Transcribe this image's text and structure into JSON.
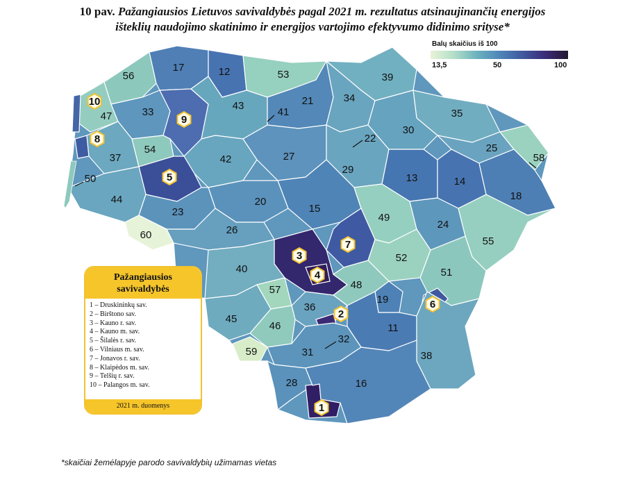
{
  "title": {
    "number": "10 pav.",
    "line1": "Pažangiausios Lietuvos savivaldybės pagal 2021 m. rezultatus atsinaujinančių energijos",
    "line2": "išteklių naudojimo skatinimo ir energijos vartojimo efektyvumo didinimo srityse*"
  },
  "scale_legend": {
    "title": "Balų skaičius iš 100",
    "ticks": [
      "13,5",
      "50",
      "100"
    ],
    "colors": [
      "#e9f3d9",
      "#b4dfc8",
      "#6db3bf",
      "#4f86b8",
      "#3f5aa0",
      "#3b2c78",
      "#241531"
    ]
  },
  "top_box": {
    "heading_line1": "Pažangiausios",
    "heading_line2": "savivaldybės",
    "items": [
      "1 – Druskininkų sav.",
      "2 – Birštono sav.",
      "3 – Kauno r. sav.",
      "4 – Kauno m. sav.",
      "5 – Šilalės r. sav.",
      "6 – Vilniaus m. sav.",
      "7 – Jonavos r. sav.",
      "8 – Klaipėdos m. sav.",
      "9 – Telšių r. sav.",
      "10 – Palangos m. sav."
    ],
    "footer": "2021 m. duomenys"
  },
  "footnote": "*skaičiai žemėlapyje parodo savivaldybių užimamas vietas",
  "map": {
    "place_labels": [
      "56",
      "17",
      "12",
      "53",
      "39",
      "47",
      "33",
      "43",
      "41",
      "21",
      "34",
      "35",
      "30",
      "37",
      "54",
      "42",
      "27",
      "22",
      "25",
      "58",
      "29",
      "13",
      "14",
      "50",
      "44",
      "18",
      "20",
      "15",
      "23",
      "60",
      "26",
      "49",
      "24",
      "55",
      "52",
      "40",
      "51",
      "48",
      "57",
      "19",
      "36",
      "45",
      "46",
      "11",
      "31",
      "32",
      "59",
      "38",
      "28",
      "16"
    ],
    "top_ranks": [
      "1",
      "2",
      "3",
      "4",
      "5",
      "6",
      "7",
      "8",
      "9",
      "10"
    ]
  }
}
